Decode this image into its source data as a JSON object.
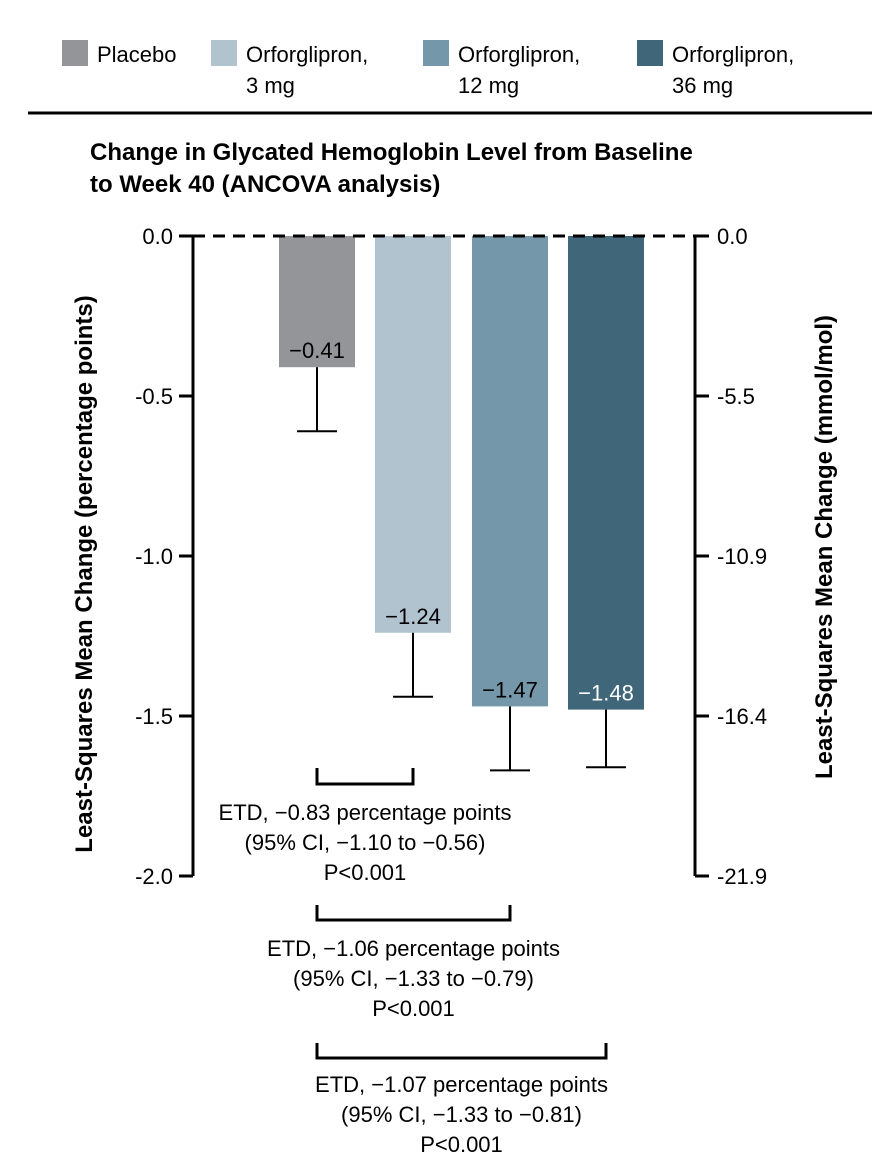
{
  "chart_data": {
    "type": "bar",
    "title": "Change in Glycated Hemoglobin Level from Baseline to Week 40 (ANCOVA analysis)",
    "title_lines": [
      "Change in Glycated Hemoglobin Level from Baseline",
      "to Week 40 (ANCOVA analysis)"
    ],
    "ylabel": "Least-Squares Mean Change (percentage points)",
    "ylabel_right": "Least-Squares Mean Change (mmol/mol)",
    "ylim": [
      -2.0,
      0.0
    ],
    "yticks": [
      "0.0",
      "-0.5",
      "-1.0",
      "-1.5",
      "-2.0"
    ],
    "yticks_right": [
      "0.0",
      "-5.5",
      "-10.9",
      "-16.4",
      "-21.9"
    ],
    "legend_position": "top",
    "series": [
      {
        "name": "Placebo",
        "legend_lines": [
          "Placebo"
        ],
        "value": -0.41,
        "label": "−0.41",
        "error_low": -0.61,
        "color": "#939598",
        "label_color": "#000000"
      },
      {
        "name": "Orforglipron, 3 mg",
        "legend_lines": [
          "Orforglipron,",
          "3 mg"
        ],
        "value": -1.24,
        "label": "−1.24",
        "error_low": -1.44,
        "color": "#b0c3cf",
        "label_color": "#000000"
      },
      {
        "name": "Orforglipron, 12 mg",
        "legend_lines": [
          "Orforglipron,",
          "12 mg"
        ],
        "value": -1.47,
        "label": "−1.47",
        "error_low": -1.67,
        "color": "#7497a9",
        "label_color": "#000000"
      },
      {
        "name": "Orforglipron, 36 mg",
        "legend_lines": [
          "Orforglipron,",
          "36 mg"
        ],
        "value": -1.48,
        "label": "−1.48",
        "error_low": -1.66,
        "color": "#3f6679",
        "label_color": "#ffffff"
      }
    ],
    "annotations": [
      {
        "from": 0,
        "to": 1,
        "lines": [
          "ETD, −0.83 percentage points",
          "(95% CI, −1.10 to −0.56)",
          "P<0.001"
        ]
      },
      {
        "from": 0,
        "to": 2,
        "lines": [
          "ETD, −1.06 percentage points",
          "(95% CI, −1.33 to −0.79)",
          "P<0.001"
        ]
      },
      {
        "from": 0,
        "to": 3,
        "lines": [
          "ETD, −1.07 percentage points",
          "(95% CI, −1.33 to −0.81)",
          "P<0.001"
        ]
      }
    ]
  }
}
